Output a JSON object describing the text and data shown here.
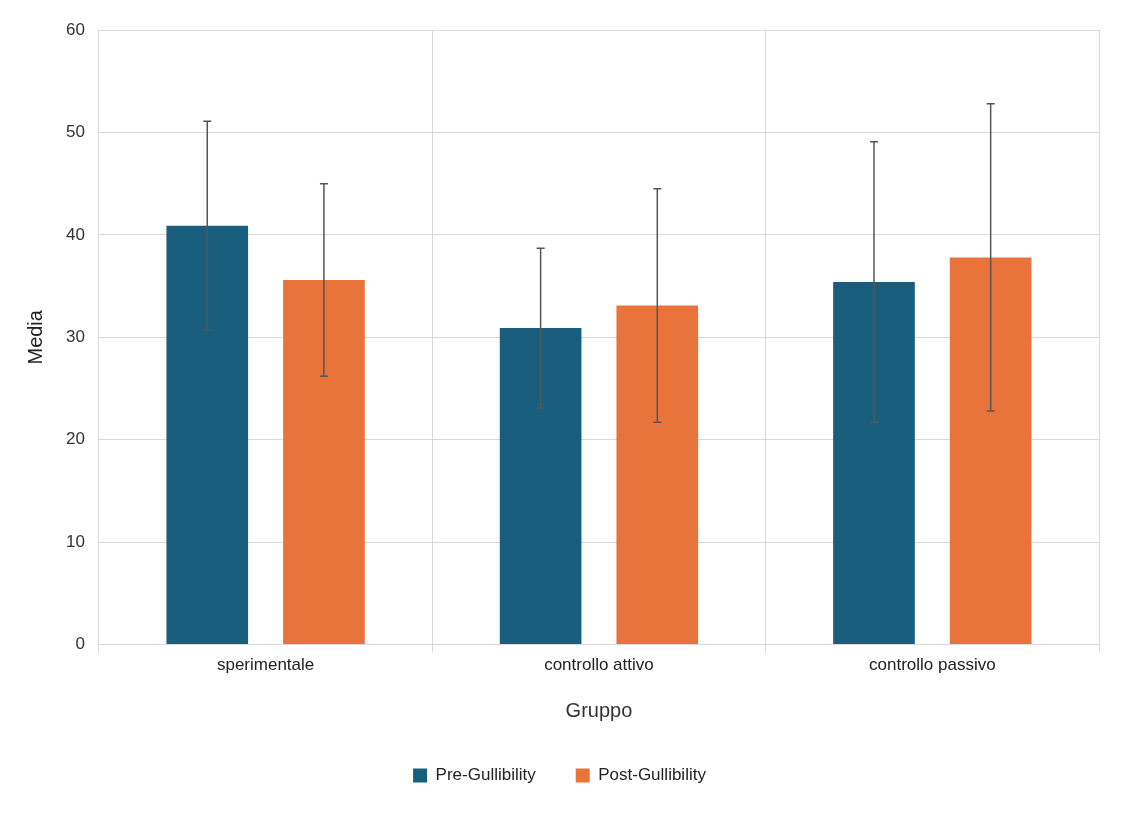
{
  "chart_data": {
    "type": "bar",
    "xlabel": "Gruppo",
    "ylabel": "Media",
    "categories": [
      "sperimentale",
      "controllo attivo",
      "controllo passivo"
    ],
    "series": [
      {
        "name": "Pre-Gullibility",
        "color": "#1a5e7e",
        "values": [
          40.9,
          30.9,
          35.4
        ],
        "errors": [
          10.2,
          7.8,
          13.7
        ]
      },
      {
        "name": "Post-Gullibility",
        "color": "#e8743b",
        "values": [
          35.6,
          33.1,
          37.8
        ],
        "errors": [
          9.4,
          11.4,
          15.0
        ]
      }
    ],
    "ylim": [
      0,
      60
    ],
    "yticks": [
      0,
      10,
      20,
      30,
      40,
      50,
      60
    ],
    "grid": true,
    "legend": "bottom"
  }
}
